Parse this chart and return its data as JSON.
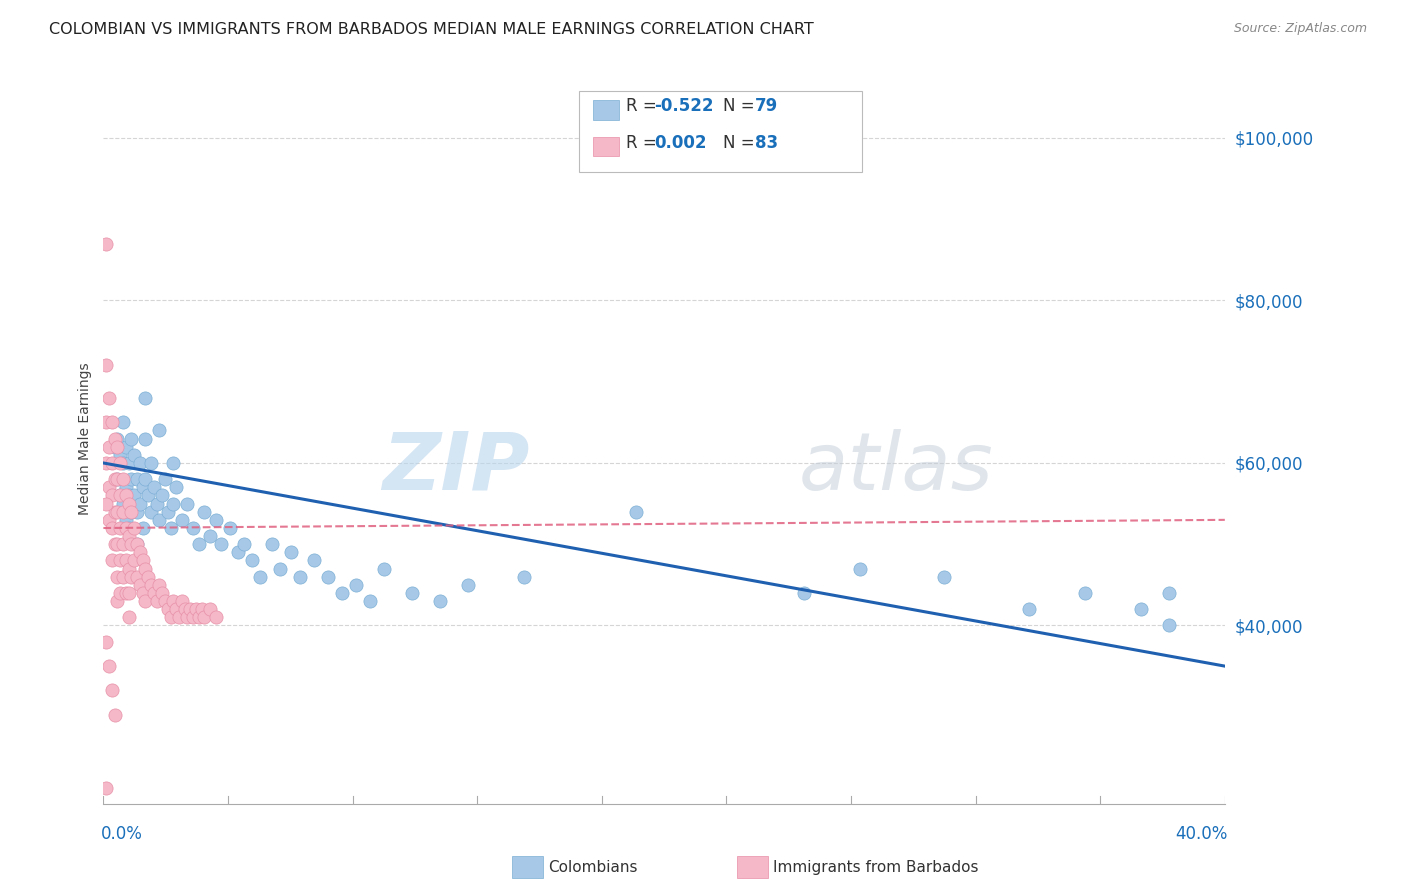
{
  "title": "COLOMBIAN VS IMMIGRANTS FROM BARBADOS MEDIAN MALE EARNINGS CORRELATION CHART",
  "source": "Source: ZipAtlas.com",
  "ylabel": "Median Male Earnings",
  "xlim": [
    0.0,
    0.4
  ],
  "ylim": [
    18000,
    108000
  ],
  "blue_color": "#a8c8e8",
  "pink_color": "#f4b8c8",
  "blue_edge": "#7bafd4",
  "pink_edge": "#e890a8",
  "trend_blue": "#2060b0",
  "trend_pink": "#e06080",
  "watermark_color": "#d0e8f8",
  "colombians_x": [
    0.004,
    0.005,
    0.005,
    0.006,
    0.006,
    0.007,
    0.007,
    0.007,
    0.008,
    0.008,
    0.008,
    0.009,
    0.009,
    0.009,
    0.01,
    0.01,
    0.01,
    0.011,
    0.011,
    0.012,
    0.012,
    0.012,
    0.013,
    0.013,
    0.014,
    0.014,
    0.015,
    0.015,
    0.016,
    0.017,
    0.017,
    0.018,
    0.019,
    0.02,
    0.021,
    0.022,
    0.023,
    0.024,
    0.025,
    0.026,
    0.028,
    0.03,
    0.032,
    0.034,
    0.036,
    0.038,
    0.04,
    0.042,
    0.045,
    0.048,
    0.05,
    0.053,
    0.056,
    0.06,
    0.063,
    0.067,
    0.07,
    0.075,
    0.08,
    0.085,
    0.09,
    0.095,
    0.1,
    0.11,
    0.12,
    0.13,
    0.15,
    0.19,
    0.25,
    0.27,
    0.3,
    0.33,
    0.35,
    0.37,
    0.38,
    0.38,
    0.015,
    0.02,
    0.025
  ],
  "colombians_y": [
    62000,
    63000,
    58000,
    61000,
    56000,
    65000,
    60000,
    55000,
    62000,
    57000,
    53000,
    60000,
    56000,
    52000,
    63000,
    58000,
    54000,
    61000,
    56000,
    58000,
    54000,
    50000,
    60000,
    55000,
    57000,
    52000,
    63000,
    58000,
    56000,
    60000,
    54000,
    57000,
    55000,
    53000,
    56000,
    58000,
    54000,
    52000,
    55000,
    57000,
    53000,
    55000,
    52000,
    50000,
    54000,
    51000,
    53000,
    50000,
    52000,
    49000,
    50000,
    48000,
    46000,
    50000,
    47000,
    49000,
    46000,
    48000,
    46000,
    44000,
    45000,
    43000,
    47000,
    44000,
    43000,
    45000,
    46000,
    54000,
    44000,
    47000,
    46000,
    42000,
    44000,
    42000,
    40000,
    44000,
    68000,
    64000,
    60000
  ],
  "barbados_x": [
    0.001,
    0.001,
    0.001,
    0.002,
    0.002,
    0.002,
    0.002,
    0.003,
    0.003,
    0.003,
    0.003,
    0.003,
    0.004,
    0.004,
    0.004,
    0.004,
    0.005,
    0.005,
    0.005,
    0.005,
    0.005,
    0.005,
    0.006,
    0.006,
    0.006,
    0.006,
    0.006,
    0.007,
    0.007,
    0.007,
    0.007,
    0.008,
    0.008,
    0.008,
    0.008,
    0.009,
    0.009,
    0.009,
    0.009,
    0.009,
    0.01,
    0.01,
    0.01,
    0.011,
    0.011,
    0.012,
    0.012,
    0.013,
    0.013,
    0.014,
    0.014,
    0.015,
    0.015,
    0.016,
    0.017,
    0.018,
    0.019,
    0.02,
    0.021,
    0.022,
    0.023,
    0.024,
    0.025,
    0.026,
    0.027,
    0.028,
    0.029,
    0.03,
    0.031,
    0.032,
    0.033,
    0.034,
    0.035,
    0.036,
    0.038,
    0.04,
    0.001,
    0.001,
    0.001,
    0.002,
    0.003,
    0.004,
    0.001
  ],
  "barbados_y": [
    72000,
    65000,
    60000,
    68000,
    62000,
    57000,
    53000,
    65000,
    60000,
    56000,
    52000,
    48000,
    63000,
    58000,
    54000,
    50000,
    62000,
    58000,
    54000,
    50000,
    46000,
    43000,
    60000,
    56000,
    52000,
    48000,
    44000,
    58000,
    54000,
    50000,
    46000,
    56000,
    52000,
    48000,
    44000,
    55000,
    51000,
    47000,
    44000,
    41000,
    54000,
    50000,
    46000,
    52000,
    48000,
    50000,
    46000,
    49000,
    45000,
    48000,
    44000,
    47000,
    43000,
    46000,
    45000,
    44000,
    43000,
    45000,
    44000,
    43000,
    42000,
    41000,
    43000,
    42000,
    41000,
    43000,
    42000,
    41000,
    42000,
    41000,
    42000,
    41000,
    42000,
    41000,
    42000,
    41000,
    87000,
    55000,
    38000,
    35000,
    32000,
    29000,
    20000
  ]
}
